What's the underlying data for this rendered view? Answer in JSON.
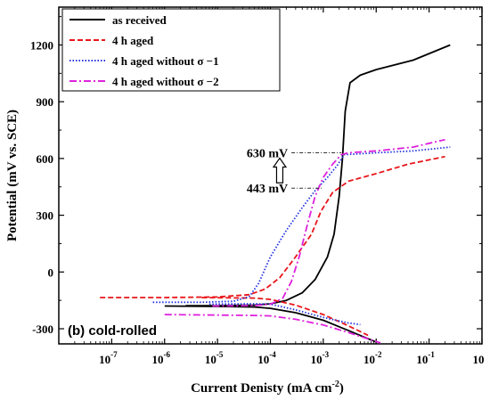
{
  "chart_data": {
    "type": "line",
    "xlabel": "Current Denisty (mA cm",
    "xlabel_sup": "-2",
    "xlabel_end": ")",
    "ylabel": "Potential (mV vs. SCE)",
    "x_scale": "log",
    "xlim": [
      1e-08,
      1
    ],
    "ylim": [
      -380,
      1400
    ],
    "y_ticks": [
      {
        "value": -300,
        "label": "-300"
      },
      {
        "value": 0,
        "label": "0"
      },
      {
        "value": 300,
        "label": "300"
      },
      {
        "value": 600,
        "label": "600"
      },
      {
        "value": 900,
        "label": "900"
      },
      {
        "value": 1200,
        "label": "1200"
      }
    ],
    "x_ticks": [
      {
        "value": 1e-07,
        "base": "10",
        "exp": "-7"
      },
      {
        "value": 1e-06,
        "base": "10",
        "exp": "-6"
      },
      {
        "value": 1e-05,
        "base": "10",
        "exp": "-5"
      },
      {
        "value": 0.0001,
        "base": "10",
        "exp": "-4"
      },
      {
        "value": 0.001,
        "base": "10",
        "exp": "-3"
      },
      {
        "value": 0.01,
        "base": "10",
        "exp": "-2"
      },
      {
        "value": 0.1,
        "base": "10",
        "exp": "-1"
      },
      {
        "value": 1,
        "base": "10",
        "exp": ""
      }
    ],
    "legend_position": "top-left",
    "panel_label": "(b) cold-rolled",
    "series": [
      {
        "name": "as received",
        "color": "#000000",
        "dash": "solid",
        "cathodic": [
          [
            1e-06,
            -180
          ],
          [
            1e-05,
            -182
          ],
          [
            5e-05,
            -185
          ],
          [
            0.0001,
            -192
          ],
          [
            0.0003,
            -215
          ],
          [
            0.001,
            -255
          ],
          [
            0.003,
            -310
          ],
          [
            0.006,
            -345
          ],
          [
            0.01,
            -370
          ]
        ],
        "anodic": [
          [
            2.5e-06,
            -178
          ],
          [
            1e-05,
            -178
          ],
          [
            5e-05,
            -175
          ],
          [
            0.0001,
            -168
          ],
          [
            0.0002,
            -150
          ],
          [
            0.0004,
            -110
          ],
          [
            0.0007,
            -40
          ],
          [
            0.0012,
            80
          ],
          [
            0.0016,
            200
          ],
          [
            0.002,
            400
          ],
          [
            0.0023,
            600
          ],
          [
            0.0026,
            850
          ],
          [
            0.0032,
            1000
          ],
          [
            0.005,
            1040
          ],
          [
            0.01,
            1070
          ],
          [
            0.05,
            1120
          ],
          [
            0.25,
            1200
          ]
        ]
      },
      {
        "name": "4 h aged",
        "color": "#e8161b",
        "dash": "dashed",
        "cathodic": [
          [
            5e-06,
            -135
          ],
          [
            5e-05,
            -138
          ],
          [
            0.0001,
            -145
          ],
          [
            0.0003,
            -175
          ],
          [
            0.001,
            -225
          ],
          [
            0.003,
            -285
          ],
          [
            0.007,
            -335
          ]
        ],
        "anodic": [
          [
            6e-08,
            -135
          ],
          [
            1e-06,
            -135
          ],
          [
            1e-05,
            -132
          ],
          [
            4e-05,
            -120
          ],
          [
            8e-05,
            -90
          ],
          [
            0.00015,
            -30
          ],
          [
            0.0003,
            80
          ],
          [
            0.0006,
            200
          ],
          [
            0.0009,
            320
          ],
          [
            0.0015,
            420
          ],
          [
            0.003,
            480
          ],
          [
            0.01,
            520
          ],
          [
            0.04,
            570
          ],
          [
            0.2,
            610
          ]
        ]
      },
      {
        "name": "4 h aged without  σ −1",
        "color": "#2233dd",
        "dash": "dotted",
        "cathodic": [
          [
            7e-06,
            -170
          ],
          [
            5e-05,
            -168
          ],
          [
            0.0001,
            -170
          ],
          [
            0.0003,
            -200
          ],
          [
            0.001,
            -240
          ],
          [
            0.003,
            -270
          ],
          [
            0.005,
            -278
          ]
        ],
        "anodic": [
          [
            6e-07,
            -160
          ],
          [
            5e-06,
            -160
          ],
          [
            2e-05,
            -155
          ],
          [
            4e-05,
            -130
          ],
          [
            6e-05,
            -60
          ],
          [
            0.0001,
            80
          ],
          [
            0.0002,
            220
          ],
          [
            0.0004,
            340
          ],
          [
            0.0007,
            430
          ],
          [
            0.0012,
            500
          ],
          [
            0.0018,
            560
          ],
          [
            0.0025,
            620
          ],
          [
            0.005,
            625
          ],
          [
            0.01,
            630
          ],
          [
            0.05,
            640
          ],
          [
            0.25,
            660
          ]
        ]
      },
      {
        "name": "4 h aged without  σ −2",
        "color": "#dd22dd",
        "dash": "dashdot",
        "cathodic": [
          [
            1e-06,
            -225
          ],
          [
            5e-05,
            -230
          ],
          [
            0.0001,
            -232
          ],
          [
            0.0003,
            -250
          ],
          [
            0.001,
            -280
          ],
          [
            0.003,
            -320
          ],
          [
            0.012,
            -375
          ]
        ],
        "anodic": [
          [
            8e-06,
            -180
          ],
          [
            5e-05,
            -178
          ],
          [
            0.0001,
            -170
          ],
          [
            0.00017,
            -140
          ],
          [
            0.00025,
            -50
          ],
          [
            0.00035,
            80
          ],
          [
            0.0005,
            250
          ],
          [
            0.0007,
            400
          ],
          [
            0.001,
            500
          ],
          [
            0.0015,
            570
          ],
          [
            0.0022,
            620
          ],
          [
            0.003,
            630
          ],
          [
            0.01,
            640
          ],
          [
            0.05,
            660
          ],
          [
            0.2,
            700
          ]
        ]
      }
    ],
    "annotations": [
      {
        "text": "630 mV",
        "y": 630,
        "x_start": 0.00025,
        "x_end": 0.0022
      },
      {
        "text": "443 mV",
        "y": 443,
        "x_start": 0.00025,
        "x_end": 0.001
      }
    ],
    "arrow": {
      "x": 0.00015,
      "from": 443,
      "to": 630
    }
  }
}
